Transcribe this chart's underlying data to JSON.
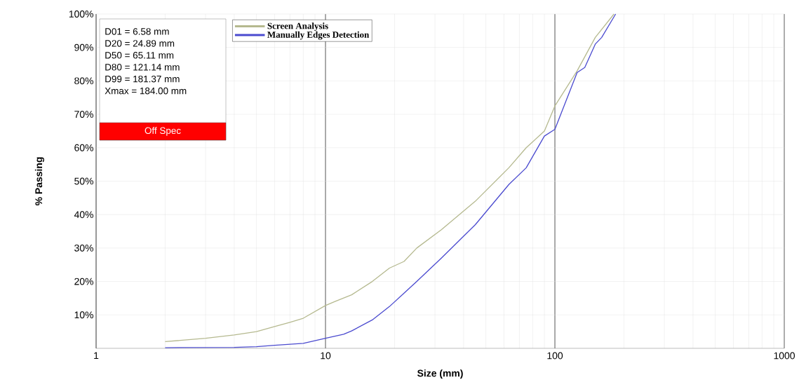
{
  "chart_data": {
    "type": "line",
    "xlabel": "Size (mm)",
    "ylabel": "% Passing",
    "x": [
      2,
      3,
      4,
      5,
      6,
      7,
      8,
      10,
      11,
      13,
      16,
      19,
      22,
      25,
      32,
      45,
      63,
      75,
      90,
      100,
      125,
      150,
      181
    ],
    "series": [
      {
        "name": "Screen Analysis",
        "color": "#b5b98f",
        "values": [
          2,
          3,
          4,
          5,
          6.5,
          7.8,
          9,
          12.8,
          14,
          16,
          20,
          24,
          26,
          30,
          35.5,
          44,
          54,
          60,
          65,
          72.5,
          83,
          93,
          100
        ]
      },
      {
        "name": "Manually Edges Detection",
        "color": "#4a4acf",
        "x": [
          2,
          4,
          5,
          6,
          8,
          10,
          12,
          13,
          16,
          19,
          22,
          25,
          32,
          45,
          63,
          75,
          90,
          100,
          125,
          135,
          150,
          160,
          184
        ],
        "values": [
          0.2,
          0.3,
          0.5,
          0.9,
          1.5,
          3,
          4.2,
          5.2,
          8.5,
          12.5,
          16.5,
          20,
          27,
          37,
          49,
          54,
          63.5,
          65.5,
          82.5,
          84,
          91,
          93,
          100
        ]
      }
    ],
    "log": "x",
    "xlim": [
      1,
      1000
    ],
    "xticks": [
      1,
      10,
      100,
      1000
    ],
    "ylim": [
      0,
      100
    ],
    "yticks": [
      {
        "value": 10,
        "label": "10%"
      },
      {
        "value": 20,
        "label": "20%"
      },
      {
        "value": 30,
        "label": "30%"
      },
      {
        "value": 40,
        "label": "40%"
      },
      {
        "value": 50,
        "label": "50%"
      },
      {
        "value": 60,
        "label": "60%"
      },
      {
        "value": 70,
        "label": "70%"
      },
      {
        "value": 80,
        "label": "80%"
      },
      {
        "value": 90,
        "label": "90%"
      },
      {
        "value": 100,
        "label": "100%"
      }
    ],
    "grid": true,
    "legend": "top left",
    "marker": "none",
    "line_style": "solid",
    "annotations": [
      "D01 = 6.58 mm",
      "D20 = 24.89 mm",
      "D50 = 65.11 mm",
      "D80 = 121.14 mm",
      "D99 = 181.37 mm",
      "Xmax = 184.00 mm",
      "Off Spec"
    ]
  }
}
